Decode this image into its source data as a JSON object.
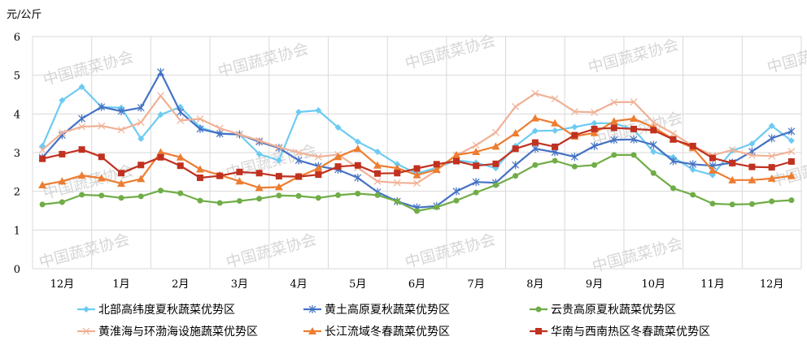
{
  "watermark": "中国蔬菜协会",
  "chart_data": {
    "type": "line",
    "unit_label": "元/公斤",
    "ylim": [
      0,
      6
    ],
    "yticks": [
      0,
      1,
      2,
      3,
      4,
      5,
      6
    ],
    "grid": true,
    "legend_position": "bottom",
    "month_labels": [
      "12月",
      "1月",
      "2月",
      "3月",
      "4月",
      "5月",
      "6月",
      "7月",
      "8月",
      "9月",
      "10月",
      "11月",
      "12月"
    ],
    "points_per_month": 3,
    "series": [
      {
        "name": "北部高纬度夏秋蔬菜优势区",
        "color": "#6dcbf2",
        "marker": "diamond",
        "values": [
          3.17,
          4.35,
          4.7,
          4.18,
          4.16,
          3.36,
          3.98,
          4.18,
          3.65,
          3.49,
          3.47,
          2.96,
          2.8,
          4.05,
          4.09,
          3.65,
          3.28,
          3.02,
          2.7,
          2.46,
          2.61,
          2.8,
          2.74,
          2.6,
          3.17,
          3.56,
          3.57,
          3.66,
          3.76,
          3.76,
          3.6,
          3.02,
          2.88,
          2.56,
          2.42,
          3.05,
          3.23,
          3.69,
          3.31
        ]
      },
      {
        "name": "黄土高原夏秋蔬菜优势区",
        "color": "#4472c4",
        "marker": "asterisk",
        "values": [
          2.87,
          3.45,
          3.88,
          4.18,
          4.07,
          4.16,
          5.08,
          4.05,
          3.61,
          3.49,
          3.47,
          3.28,
          3.12,
          2.8,
          2.65,
          2.56,
          2.35,
          1.98,
          1.74,
          1.58,
          1.62,
          2.0,
          2.24,
          2.22,
          2.68,
          3.1,
          3.01,
          2.89,
          3.17,
          3.33,
          3.34,
          3.2,
          2.78,
          2.7,
          2.66,
          2.74,
          3.03,
          3.37,
          3.55
        ]
      },
      {
        "name": "云贵高原夏秋蔬菜优势区",
        "color": "#70ad47",
        "marker": "circle",
        "values": [
          1.66,
          1.72,
          1.91,
          1.89,
          1.83,
          1.87,
          2.02,
          1.95,
          1.76,
          1.7,
          1.75,
          1.81,
          1.89,
          1.88,
          1.83,
          1.9,
          1.94,
          1.9,
          1.74,
          1.49,
          1.59,
          1.76,
          1.97,
          2.16,
          2.4,
          2.68,
          2.79,
          2.64,
          2.68,
          2.94,
          2.94,
          2.47,
          2.08,
          1.91,
          1.68,
          1.66,
          1.67,
          1.74,
          1.77
        ]
      },
      {
        "name": "黄淮海与环渤海设施蔬菜优势区",
        "color": "#f0b196",
        "marker": "x",
        "values": [
          3.07,
          3.51,
          3.67,
          3.69,
          3.59,
          3.78,
          4.47,
          3.83,
          3.87,
          3.63,
          3.47,
          3.31,
          3.14,
          3.0,
          2.89,
          2.95,
          2.61,
          2.26,
          2.22,
          2.21,
          2.54,
          2.93,
          3.19,
          3.52,
          4.19,
          4.53,
          4.39,
          4.06,
          4.04,
          4.3,
          4.31,
          3.78,
          3.49,
          3.17,
          2.93,
          3.07,
          2.93,
          2.91,
          3.03
        ]
      },
      {
        "name": "长江流域冬春蔬菜优势区",
        "color": "#ed7d31",
        "marker": "triangle",
        "values": [
          2.16,
          2.26,
          2.41,
          2.34,
          2.2,
          2.32,
          3.01,
          2.88,
          2.57,
          2.42,
          2.26,
          2.09,
          2.11,
          2.38,
          2.59,
          2.89,
          3.1,
          2.67,
          2.6,
          2.42,
          2.56,
          2.94,
          3.02,
          3.16,
          3.5,
          3.89,
          3.76,
          3.42,
          3.51,
          3.81,
          3.88,
          3.65,
          3.35,
          3.12,
          2.54,
          2.29,
          2.29,
          2.33,
          2.4
        ]
      },
      {
        "name": "华南与西南热区冬春蔬菜优势区",
        "color": "#c0311f",
        "marker": "square",
        "values": [
          2.84,
          2.96,
          3.08,
          2.89,
          2.47,
          2.68,
          2.88,
          2.66,
          2.35,
          2.4,
          2.5,
          2.47,
          2.39,
          2.38,
          2.43,
          2.64,
          2.67,
          2.46,
          2.47,
          2.59,
          2.7,
          2.78,
          2.66,
          2.71,
          3.1,
          3.26,
          3.15,
          3.45,
          3.61,
          3.64,
          3.61,
          3.58,
          3.34,
          3.17,
          2.86,
          2.73,
          2.63,
          2.62,
          2.77
        ]
      }
    ]
  }
}
